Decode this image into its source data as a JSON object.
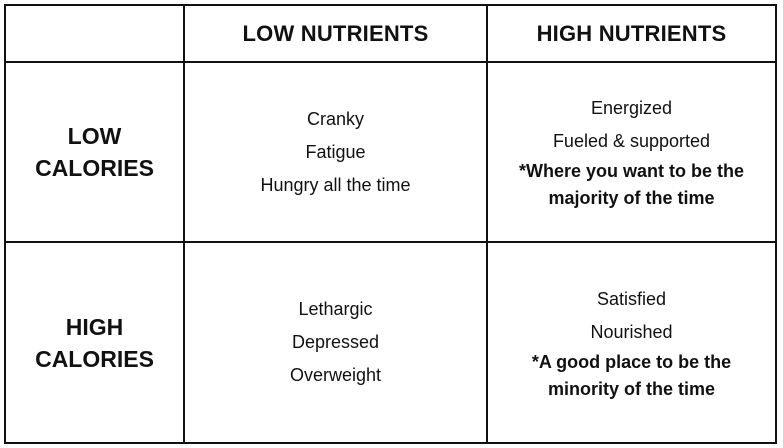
{
  "columns": {
    "empty": "",
    "low_nutrients": "LOW NUTRIENTS",
    "high_nutrients": "HIGH NUTRIENTS"
  },
  "rows": [
    {
      "label_line1": "LOW",
      "label_line2": "CALORIES",
      "low_nutrients": {
        "items": [
          "Cranky",
          "Fatigue",
          "Hungry all the time"
        ]
      },
      "high_nutrients": {
        "items": [
          "Energized",
          "Fueled & supported"
        ],
        "note_line1": "*Where you want to be the",
        "note_line2": "majority of the time"
      }
    },
    {
      "label_line1": "HIGH",
      "label_line2": "CALORIES",
      "low_nutrients": {
        "items": [
          "Lethargic",
          "Depressed",
          "Overweight"
        ]
      },
      "high_nutrients": {
        "items": [
          "Satisfied",
          "Nourished"
        ],
        "note_line1": "*A good place to be the",
        "note_line2": "minority of the time"
      }
    }
  ]
}
